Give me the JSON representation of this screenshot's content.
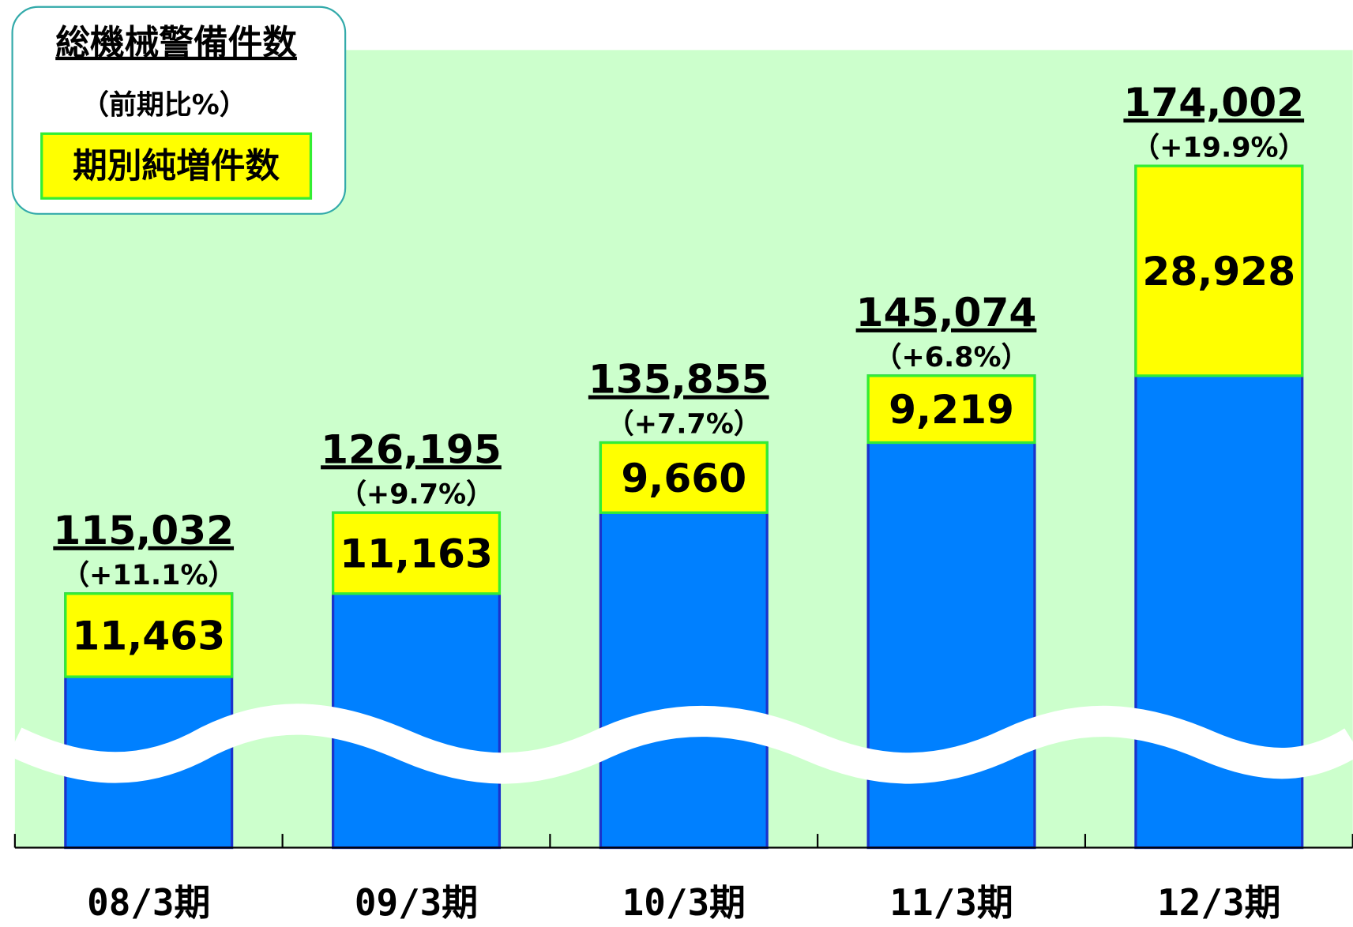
{
  "chart_data": {
    "type": "bar",
    "legend": {
      "title": "総機械警備件数",
      "subtitle": "（前期比%）",
      "increment_name": "期別純増件数"
    },
    "categories": [
      "08/3期",
      "09/3期",
      "10/3期",
      "11/3期",
      "12/3期"
    ],
    "totals": [
      115032,
      126195,
      135855,
      145074,
      174002
    ],
    "total_labels": [
      "115,032",
      "126,195",
      "135,855",
      "145,074",
      "174,002"
    ],
    "change_labels": [
      "（+11.1%）",
      "（+9.7%）",
      "（+7.7%）",
      "（+6.8%）",
      "（+19.9%）"
    ],
    "increments": [
      11463,
      11163,
      9660,
      9219,
      28928
    ],
    "increment_labels": [
      "11,463",
      "11,163",
      "9,660",
      "9,219",
      "28,928"
    ],
    "total_color": "#0080ff",
    "increment_color": "#ffff00",
    "ylim": [
      80000,
      180000
    ],
    "axis_break": true
  }
}
